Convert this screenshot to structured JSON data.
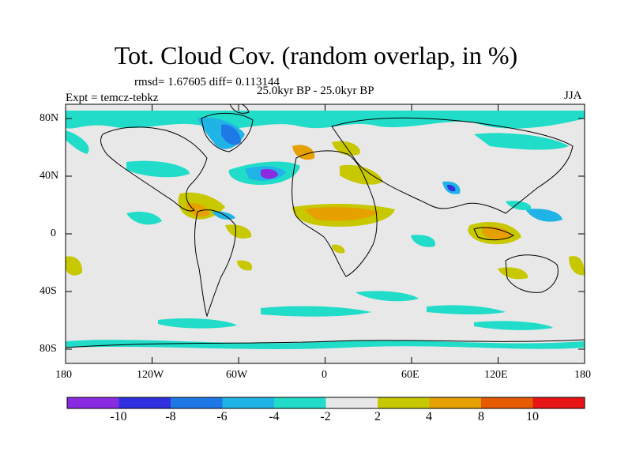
{
  "title": "Tot. Cloud Cov. (random overlap, in %)",
  "stats": "rmsd= 1.67605 diff= 0.113144",
  "period": "25.0kyr BP - 25.0kyr BP",
  "experiment": "Expt = temcz-tebkz",
  "season": "JJA",
  "lat_labels": [
    "80N",
    "40N",
    "0",
    "40S",
    "80S"
  ],
  "lon_labels": [
    "180",
    "120W",
    "60W",
    "0",
    "60E",
    "120E",
    "180"
  ],
  "colorbar": {
    "colors": [
      "#8a2be2",
      "#3030e0",
      "#1e78e6",
      "#20b4e6",
      "#20dcc8",
      "#e8e8e8",
      "#c8c800",
      "#e6a000",
      "#e65a00",
      "#e61414"
    ],
    "labels": [
      "-10",
      "-8",
      "-6",
      "-4",
      "-2",
      "2",
      "4",
      "8",
      "10"
    ]
  },
  "background_color": "#e8e8e8"
}
